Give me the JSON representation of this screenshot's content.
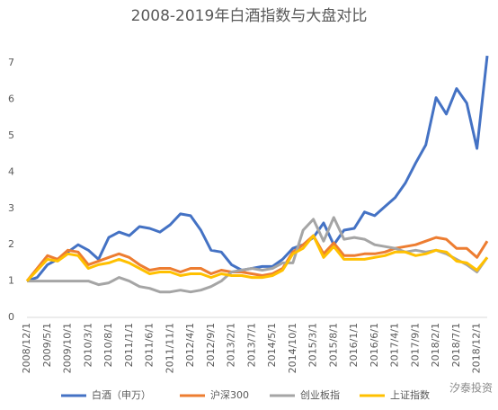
{
  "chart_data": {
    "type": "line",
    "title": "2008-2019年白酒指数与大盘对比",
    "categories": [
      "2008/12/1",
      null,
      "2009/5/1",
      null,
      "2009/10/1",
      null,
      "2010/3/1",
      null,
      "2010/8/1",
      null,
      "2011/1/1",
      null,
      "2011/6/1",
      null,
      "2011/11/1",
      null,
      "2012/4/1",
      null,
      "2012/9/1",
      null,
      "2013/2/1",
      null,
      "2013/7/1",
      null,
      "2014/5/1",
      null,
      "2014/10/1",
      null,
      "2015/3/1",
      null,
      "2015/8/1",
      null,
      "2016/1/1",
      null,
      "2016/6/1",
      null,
      "2017/4/1",
      null,
      "2017/9/1",
      null,
      "2018/2/1",
      null,
      "2018/7/1",
      null,
      "2018/12/1",
      null
    ],
    "series": [
      {
        "name": "白酒（申万）",
        "color": "#4472c4",
        "values": [
          1.0,
          1.1,
          1.45,
          1.6,
          1.8,
          2.0,
          1.85,
          1.6,
          2.2,
          2.35,
          2.25,
          2.5,
          2.45,
          2.35,
          2.55,
          2.85,
          2.8,
          2.4,
          1.85,
          1.8,
          1.45,
          1.3,
          1.35,
          1.4,
          1.4,
          1.6,
          1.9,
          2.0,
          2.2,
          2.6,
          2.0,
          2.4,
          2.45,
          2.9,
          2.8,
          3.05,
          3.3,
          3.7,
          4.25,
          4.75,
          6.05,
          5.6,
          6.3,
          5.9,
          4.65,
          7.2
        ]
      },
      {
        "name": "沪深300",
        "color": "#ed7d31",
        "values": [
          1.0,
          1.35,
          1.7,
          1.6,
          1.85,
          1.8,
          1.45,
          1.55,
          1.65,
          1.75,
          1.65,
          1.45,
          1.3,
          1.35,
          1.35,
          1.25,
          1.35,
          1.35,
          1.2,
          1.3,
          1.25,
          1.25,
          1.2,
          1.15,
          1.2,
          1.35,
          1.8,
          2.0,
          2.25,
          1.75,
          2.05,
          1.7,
          1.7,
          1.75,
          1.75,
          1.8,
          1.9,
          1.95,
          2.0,
          2.1,
          2.2,
          2.15,
          1.9,
          1.9,
          1.65,
          2.1
        ]
      },
      {
        "name": "创业板指",
        "color": "#a5a5a5",
        "values": [
          1.0,
          1.0,
          1.0,
          1.0,
          1.0,
          1.0,
          1.0,
          0.9,
          0.95,
          1.1,
          1.0,
          0.85,
          0.8,
          0.7,
          0.7,
          0.75,
          0.7,
          0.75,
          0.85,
          1.0,
          1.25,
          1.3,
          1.35,
          1.3,
          1.35,
          1.5,
          1.5,
          2.4,
          2.7,
          2.1,
          2.75,
          2.15,
          2.2,
          2.15,
          2.0,
          1.95,
          1.9,
          1.8,
          1.85,
          1.8,
          1.85,
          1.75,
          1.6,
          1.45,
          1.25,
          1.65
        ]
      },
      {
        "name": "上证指数",
        "color": "#ffc000",
        "values": [
          1.0,
          1.3,
          1.6,
          1.55,
          1.75,
          1.7,
          1.35,
          1.45,
          1.5,
          1.6,
          1.5,
          1.35,
          1.2,
          1.25,
          1.25,
          1.15,
          1.2,
          1.2,
          1.1,
          1.2,
          1.15,
          1.15,
          1.1,
          1.1,
          1.15,
          1.3,
          1.75,
          1.9,
          2.25,
          1.65,
          1.95,
          1.6,
          1.6,
          1.6,
          1.65,
          1.7,
          1.8,
          1.8,
          1.7,
          1.75,
          1.85,
          1.8,
          1.55,
          1.5,
          1.3,
          1.65
        ]
      }
    ],
    "ylim": [
      0,
      7.5
    ],
    "yticks": [
      0,
      1,
      2,
      3,
      4,
      5,
      6,
      7
    ],
    "grid": false,
    "legend": "bottom",
    "watermark": "汐泰投资"
  }
}
